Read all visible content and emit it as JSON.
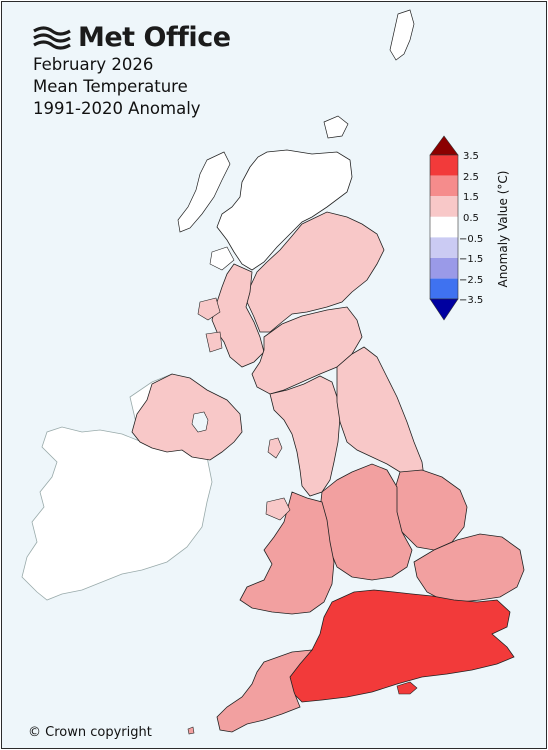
{
  "brand": {
    "name": "Met Office",
    "logo_icon": "met-office-wave-logo"
  },
  "title": {
    "line1": "February 2026",
    "line2": "Mean Temperature",
    "line3": "1991-2020 Anomaly"
  },
  "colorbar": {
    "label": "Anomaly Value (°C)",
    "ticks": [
      "3.5",
      "2.5",
      "1.5",
      "0.5",
      "−0.5",
      "−1.5",
      "−2.5",
      "−3.5"
    ],
    "colors": {
      "over": "#8b0000",
      "b_2_5_3_5": "#f23a3a",
      "b_1_5_2_5": "#f58c8c",
      "b_0_5_1_5": "#f8c8c8",
      "b_n0_5_0_5": "#ffffff",
      "b_n1_5_n0_5": "#cbcbf3",
      "b_n2_5_n1_5": "#9a9ae8",
      "b_n3_5_n2_5": "#3f72f0",
      "under": "#0000a0"
    }
  },
  "map_colors": {
    "sea": "#eef6fa",
    "ireland": "#ffffff",
    "anomaly_0_5_1_5": "#f8c8c8",
    "anomaly_1_5_2_5": "#f2a0a0",
    "anomaly_2_5_3_5": "#f23a3a"
  },
  "footer": {
    "copyright": "© Crown copyright"
  }
}
